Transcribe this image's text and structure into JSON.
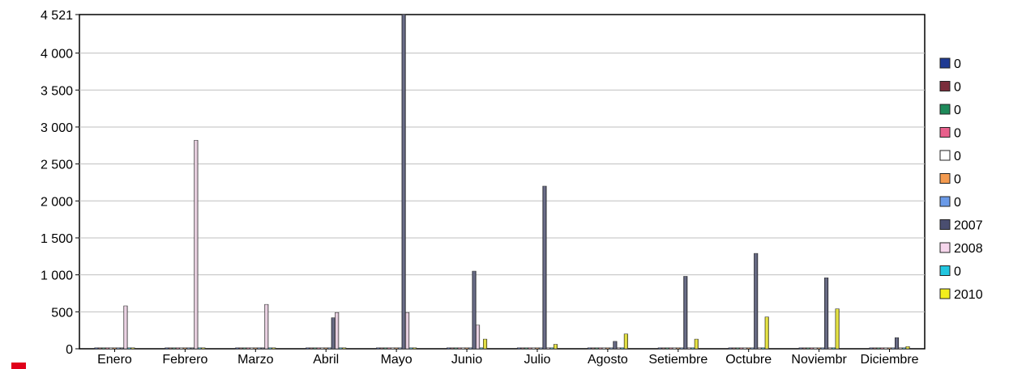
{
  "chart_data": {
    "type": "bar",
    "title": "",
    "xlabel": "",
    "ylabel": "",
    "ylim": [
      0,
      4521
    ],
    "y_ticks": [
      0,
      500,
      1000,
      1500,
      2000,
      2500,
      3000,
      3500,
      4000,
      4521
    ],
    "y_tick_labels": [
      "0",
      "500",
      "1 000",
      "1 500",
      "2 000",
      "2 500",
      "3 000",
      "3 500",
      "4 000",
      "4 521"
    ],
    "grid": true,
    "legend_position": "right",
    "categories": [
      "Enero",
      "Febrero",
      "Marzo",
      "Abril",
      "Mayo",
      "Junio",
      "Julio",
      "Agosto",
      "Setiembre",
      "Octubre",
      "Noviembre",
      "Diciembre"
    ],
    "category_labels": [
      "Enero",
      "Febrero",
      "Marzo",
      "Abril",
      "Mayo",
      "Junio",
      "Julio",
      "Agosto",
      "Setiembre",
      "Octubre",
      "Noviembr",
      "Diciembre"
    ],
    "series": [
      {
        "name": "0",
        "color": "#1f3a93",
        "values": [
          0,
          0,
          0,
          0,
          0,
          0,
          0,
          0,
          0,
          0,
          0,
          0
        ]
      },
      {
        "name": "0",
        "color": "#7b2d3b",
        "values": [
          0,
          0,
          0,
          0,
          0,
          0,
          0,
          0,
          0,
          0,
          0,
          0
        ]
      },
      {
        "name": "0",
        "color": "#1e8a5a",
        "values": [
          0,
          0,
          0,
          0,
          0,
          0,
          0,
          0,
          0,
          0,
          0,
          0
        ]
      },
      {
        "name": "0",
        "color": "#e8608c",
        "values": [
          0,
          0,
          0,
          0,
          0,
          0,
          0,
          0,
          0,
          0,
          0,
          0
        ]
      },
      {
        "name": "0",
        "color": "#ffffff",
        "values": [
          0,
          0,
          0,
          0,
          0,
          0,
          0,
          0,
          0,
          0,
          0,
          0
        ]
      },
      {
        "name": "0",
        "color": "#f39a4f",
        "values": [
          0,
          0,
          0,
          0,
          0,
          0,
          0,
          0,
          0,
          0,
          0,
          0
        ]
      },
      {
        "name": "0",
        "color": "#6a9ae8",
        "values": [
          0,
          0,
          0,
          0,
          0,
          0,
          0,
          0,
          0,
          0,
          0,
          0
        ]
      },
      {
        "name": "2007",
        "color": "#4a4e70",
        "values": [
          0,
          0,
          0,
          420,
          4521,
          1050,
          2200,
          100,
          980,
          1290,
          960,
          150
        ]
      },
      {
        "name": "2008",
        "color": "#f6d6ec",
        "values": [
          580,
          2820,
          600,
          490,
          490,
          320,
          0,
          0,
          0,
          0,
          0,
          0
        ]
      },
      {
        "name": "0",
        "color": "#22c6e0",
        "values": [
          0,
          0,
          0,
          0,
          0,
          0,
          0,
          0,
          0,
          0,
          0,
          0
        ]
      },
      {
        "name": "2010",
        "color": "#f2ee1c",
        "values": [
          0,
          0,
          0,
          0,
          0,
          130,
          60,
          200,
          130,
          430,
          540,
          30
        ]
      }
    ]
  }
}
